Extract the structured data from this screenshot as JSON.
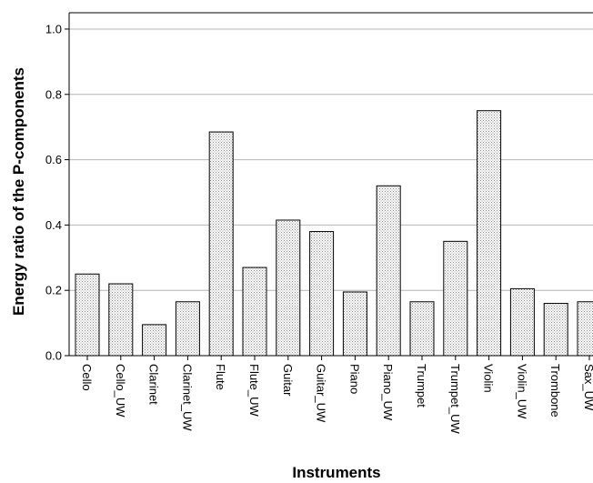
{
  "chart_data": {
    "type": "bar",
    "xlabel": "Instruments",
    "ylabel": "Energy ratio of the P-components",
    "ylim": [
      0,
      1.05
    ],
    "yticks": [
      "0.0",
      "0.2",
      "0.4",
      "0.6",
      "0.8",
      "1.0"
    ],
    "grid": true,
    "categories": [
      "Cello",
      "Cello_UW",
      "Clarinet",
      "Clarinet_UW",
      "Flute",
      "Flute_UW",
      "Guitar",
      "Guitar_UW",
      "Piano",
      "Piano_UW",
      "Trumpet",
      "Trumpet_UW",
      "Violin",
      "Violin_UW",
      "Trombone",
      "Sax_UW"
    ],
    "values": [
      0.25,
      0.22,
      0.095,
      0.165,
      0.685,
      0.27,
      0.415,
      0.38,
      0.195,
      0.52,
      0.165,
      0.35,
      0.75,
      0.205,
      0.16,
      0.165
    ]
  }
}
